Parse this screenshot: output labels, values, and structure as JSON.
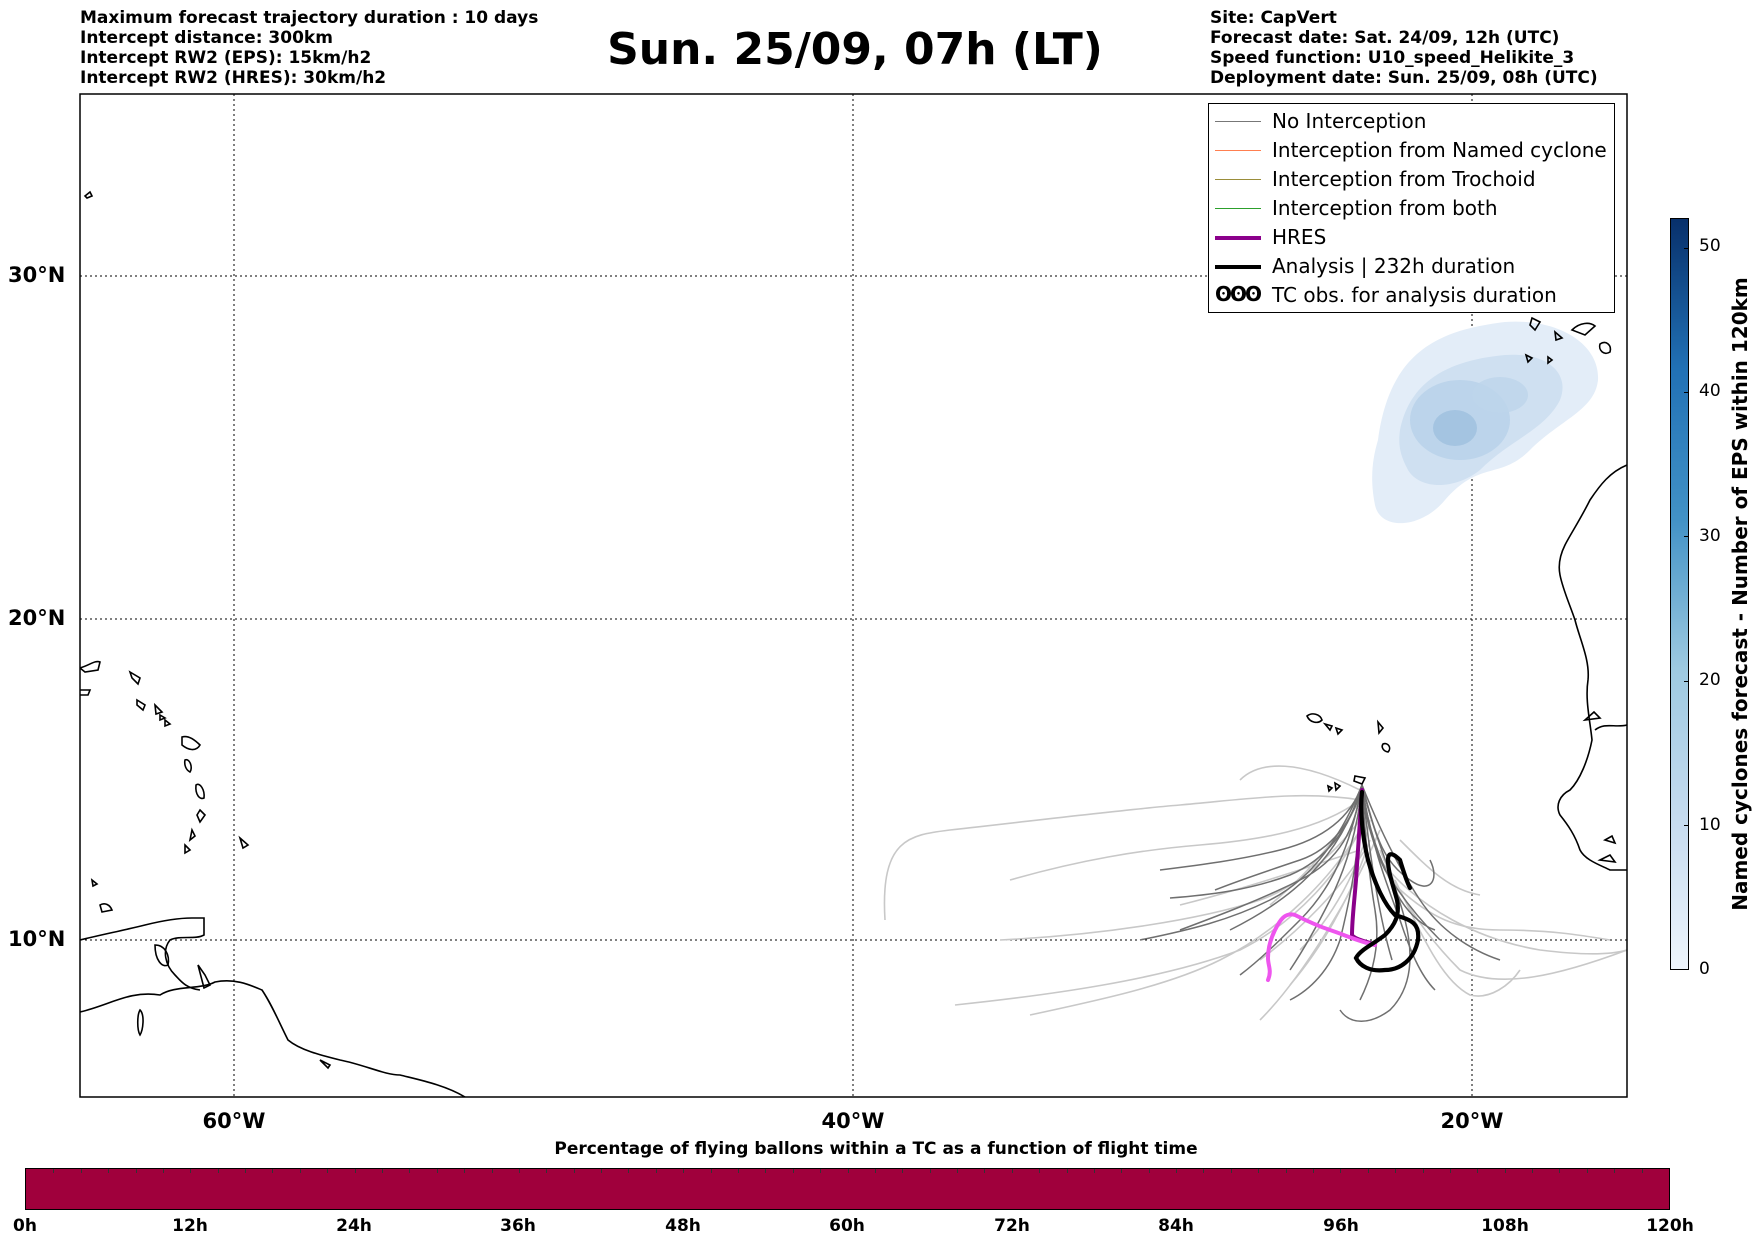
{
  "info_left": [
    "Maximum forecast trajectory duration : 10 days",
    "Intercept distance: 300km",
    "Intercept RW2 (EPS):  15km/h2",
    "Intercept RW2 (HRES): 30km/h2"
  ],
  "info_right": [
    "Site: CapVert",
    "Forecast date: Sat. 24/09, 12h (UTC)",
    "Speed function: U10_speed_Helikite_3",
    "Deployment date: Sun. 25/09, 08h (UTC)"
  ],
  "title": "Sun. 25/09, 07h (LT)",
  "map": {
    "lon_range": [
      -65,
      -15
    ],
    "lat_range": [
      5.5,
      35
    ],
    "lat_labels": [
      "30°N",
      "20°N",
      "10°N"
    ],
    "lat_values": [
      30,
      20,
      10
    ],
    "lon_labels": [
      "60°W",
      "40°W",
      "20°W"
    ],
    "lon_values": [
      -60,
      -40,
      -20
    ],
    "grid": "dotted"
  },
  "legend": [
    {
      "label": "No Interception",
      "color": "#777777",
      "style": "line-thin"
    },
    {
      "label": "Interception from Named cyclone",
      "color": "#ff7f50",
      "style": "line-thin"
    },
    {
      "label": "Interception from Trochoid",
      "color": "#9a8d3a",
      "style": "line-thin"
    },
    {
      "label": "Interception from both",
      "color": "#2ca02c",
      "style": "line-thin"
    },
    {
      "label": "HRES",
      "color": "#8b008b",
      "style": "line-thick"
    },
    {
      "label": "Analysis | 232h duration",
      "color": "#000000",
      "style": "line-thick"
    },
    {
      "label": "TC obs. for analysis duration",
      "color": "#000000",
      "style": "tc-symbol",
      "symbol": "ʘʘʘ"
    }
  ],
  "colorbar_right": {
    "title": "Named cyclones forecast - Number of EPS within 120km",
    "ticks": [
      "0",
      "10",
      "20",
      "30",
      "40",
      "50"
    ],
    "tick_values": [
      0,
      10,
      20,
      30,
      40,
      50
    ],
    "max": 52,
    "colors": [
      "#eef5fc",
      "#c6dbef",
      "#9ecae1",
      "#4292c6",
      "#2171b5",
      "#08306b"
    ]
  },
  "bottom_bar": {
    "title": "Percentage of flying ballons within a TC as a function of flight time",
    "hour_labels": [
      "0h",
      "12h",
      "24h",
      "36h",
      "48h",
      "60h",
      "72h",
      "84h",
      "96h",
      "108h",
      "120h"
    ],
    "color": "#a0003c"
  }
}
